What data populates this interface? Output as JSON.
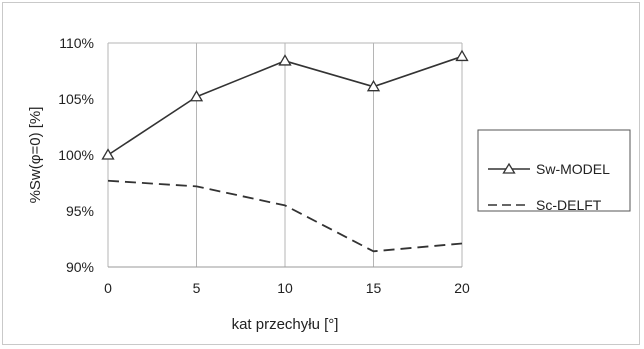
{
  "chart_data": {
    "type": "line",
    "title": "",
    "xlabel": "kat przechyłu [°]",
    "ylabel": "%Sw(φ=0) [%]",
    "x": [
      0,
      5,
      10,
      15,
      20
    ],
    "x_ticks": [
      "0",
      "5",
      "10",
      "15",
      "20"
    ],
    "xlim": [
      0,
      20
    ],
    "ylim": [
      90,
      110
    ],
    "y_ticks": [
      {
        "value": 90,
        "label": "90%"
      },
      {
        "value": 95,
        "label": "95%"
      },
      {
        "value": 100,
        "label": "100%"
      },
      {
        "value": 105,
        "label": "105%"
      },
      {
        "value": 110,
        "label": "110%"
      }
    ],
    "grid": {
      "vertical": true,
      "horizontal": false
    },
    "legend_position": "right",
    "series": [
      {
        "name": "Sw-MODEL",
        "values": [
          100,
          105.2,
          108.4,
          106.1,
          108.8
        ],
        "style": "solid",
        "marker": "triangle",
        "color": "#333333"
      },
      {
        "name": "Sc-DELFT",
        "values": [
          97.7,
          97.2,
          95.5,
          91.4,
          92.1
        ],
        "style": "dashed",
        "marker": "none",
        "color": "#333333"
      }
    ]
  }
}
